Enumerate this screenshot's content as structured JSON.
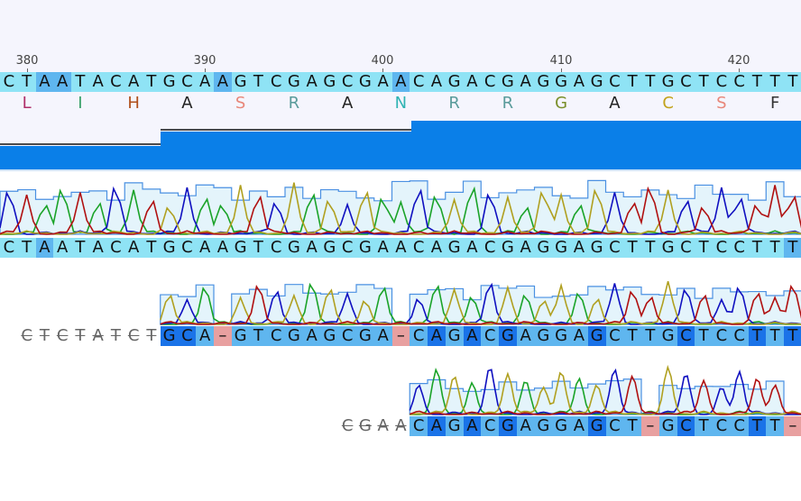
{
  "ruler": {
    "ticks": [
      {
        "label": "380",
        "pos": 30
      },
      {
        "label": "390",
        "pos": 227
      },
      {
        "label": "400",
        "pos": 424
      },
      {
        "label": "410",
        "pos": 622
      },
      {
        "label": "420",
        "pos": 819
      }
    ]
  },
  "reference": {
    "sequence": "CTAATACATGCAAGTCGAGCGAACAGACGAGGAGCTTGCTCCTTT"
  },
  "translation": {
    "amino_acids": [
      {
        "aa": "L",
        "color": "#b0306a"
      },
      {
        "aa": "I",
        "color": "#3aa06a"
      },
      {
        "aa": "H",
        "color": "#b0501c"
      },
      {
        "aa": "A",
        "color": "#222222"
      },
      {
        "aa": "S",
        "color": "#e8877a"
      },
      {
        "aa": "R",
        "color": "#5a9b9b"
      },
      {
        "aa": "A",
        "color": "#222222"
      },
      {
        "aa": "N",
        "color": "#2fb3b3"
      },
      {
        "aa": "R",
        "color": "#5a9b9b"
      },
      {
        "aa": "R",
        "color": "#5a9b9b"
      },
      {
        "aa": "G",
        "color": "#7a8f2a"
      },
      {
        "aa": "A",
        "color": "#222222"
      },
      {
        "aa": "C",
        "color": "#c2a21a"
      },
      {
        "aa": "S",
        "color": "#e8877a"
      },
      {
        "aa": "F",
        "color": "#333333"
      }
    ]
  },
  "consensus": {
    "sequence": "CTAATACATGCAAGTCGAGCGAACAGACGAGGAGCTTGCTCCTTT"
  },
  "read1": {
    "trimmed": "CTCTATCT",
    "sequence": "GCA-GTCGAGCGA-CAGACGAGGAGCTTGCTCCTTT"
  },
  "read2": {
    "trimmed": "CGAA",
    "sequence": "CAGACGAGGAGCT-GCTCCTT-"
  },
  "colors": {
    "A": "#1aa328",
    "C": "#1010c0",
    "G": "#b0a020",
    "T": "#b01010",
    "match_light": "#8fe3f5",
    "match_mid": "#5fb6ef",
    "match_dark": "#1a73e8",
    "gap": "#e8a0a0",
    "coverage": "#0a7fe8"
  }
}
